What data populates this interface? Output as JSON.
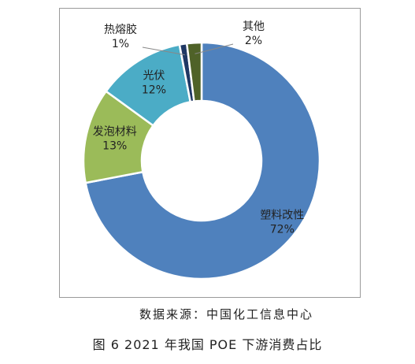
{
  "chart_data": {
    "type": "pie",
    "subtype": "donut",
    "title": "",
    "categories": [
      "塑料改性",
      "发泡材料",
      "光伏",
      "热熔胶",
      "其他"
    ],
    "values": [
      72,
      13,
      12,
      1,
      2
    ],
    "value_labels": [
      "72%",
      "13%",
      "12%",
      "1%",
      "2%"
    ],
    "colors": [
      "#4f81bd",
      "#9bbb59",
      "#4bacc6",
      "#1f3864",
      "#4f6228"
    ],
    "start_angle_deg": 0,
    "direction": "clockwise",
    "legend": "none"
  },
  "source_note": "数据来源：中国化工信息中心",
  "figure_caption": "图 6  2021 年我国 POE 下游消费占比"
}
